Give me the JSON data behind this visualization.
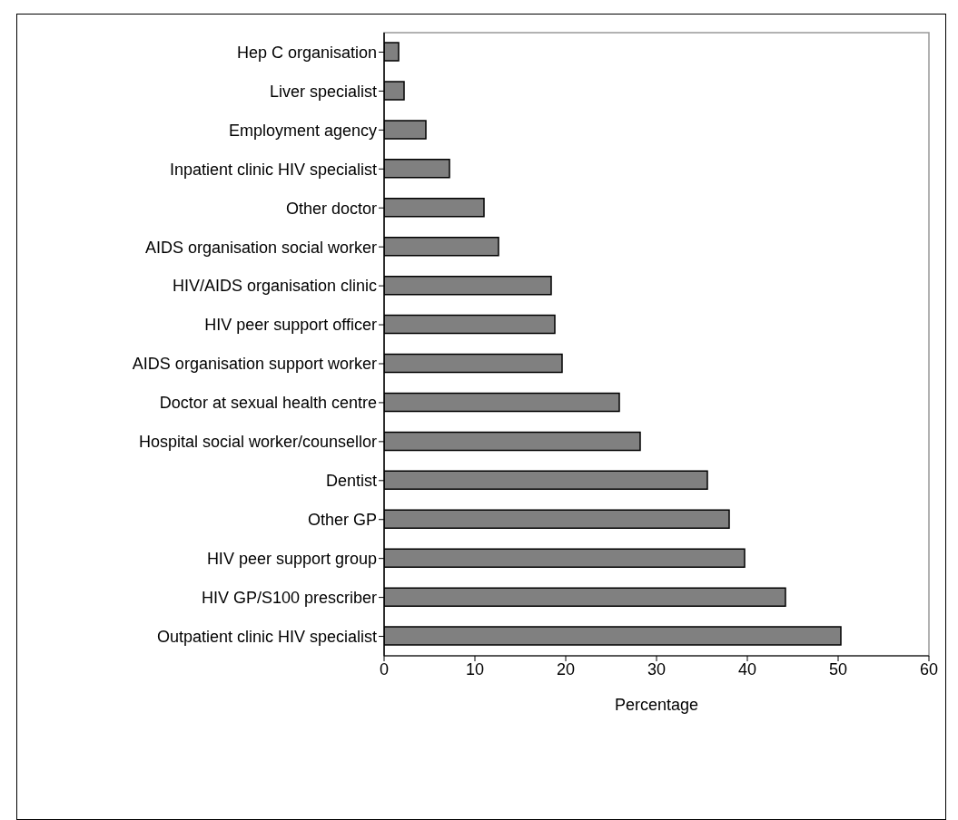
{
  "chart_data": {
    "type": "bar",
    "orientation": "horizontal",
    "xlabel": "Percentage",
    "categories": [
      "Hep C organisation",
      "Liver specialist",
      "Employment agency",
      "Inpatient clinic HIV specialist",
      "Other doctor",
      "AIDS organisation social worker",
      "HIV/AIDS organisation clinic",
      "HIV peer support officer",
      "AIDS organisation support worker",
      "Doctor at sexual health centre",
      "Hospital social worker/counsellor",
      "Dentist",
      "Other GP",
      "HIV peer support group",
      "HIV GP/S100 prescriber",
      "Outpatient clinic HIV specialist"
    ],
    "values": [
      1.6,
      2.2,
      4.6,
      7.2,
      11.0,
      12.6,
      18.4,
      18.8,
      19.6,
      25.9,
      28.2,
      35.6,
      38.0,
      39.7,
      44.2,
      50.3
    ],
    "color": "#808080",
    "xlim": [
      0,
      60
    ],
    "xticks": [
      0,
      10,
      20,
      30,
      40,
      50,
      60
    ],
    "grid": false
  }
}
